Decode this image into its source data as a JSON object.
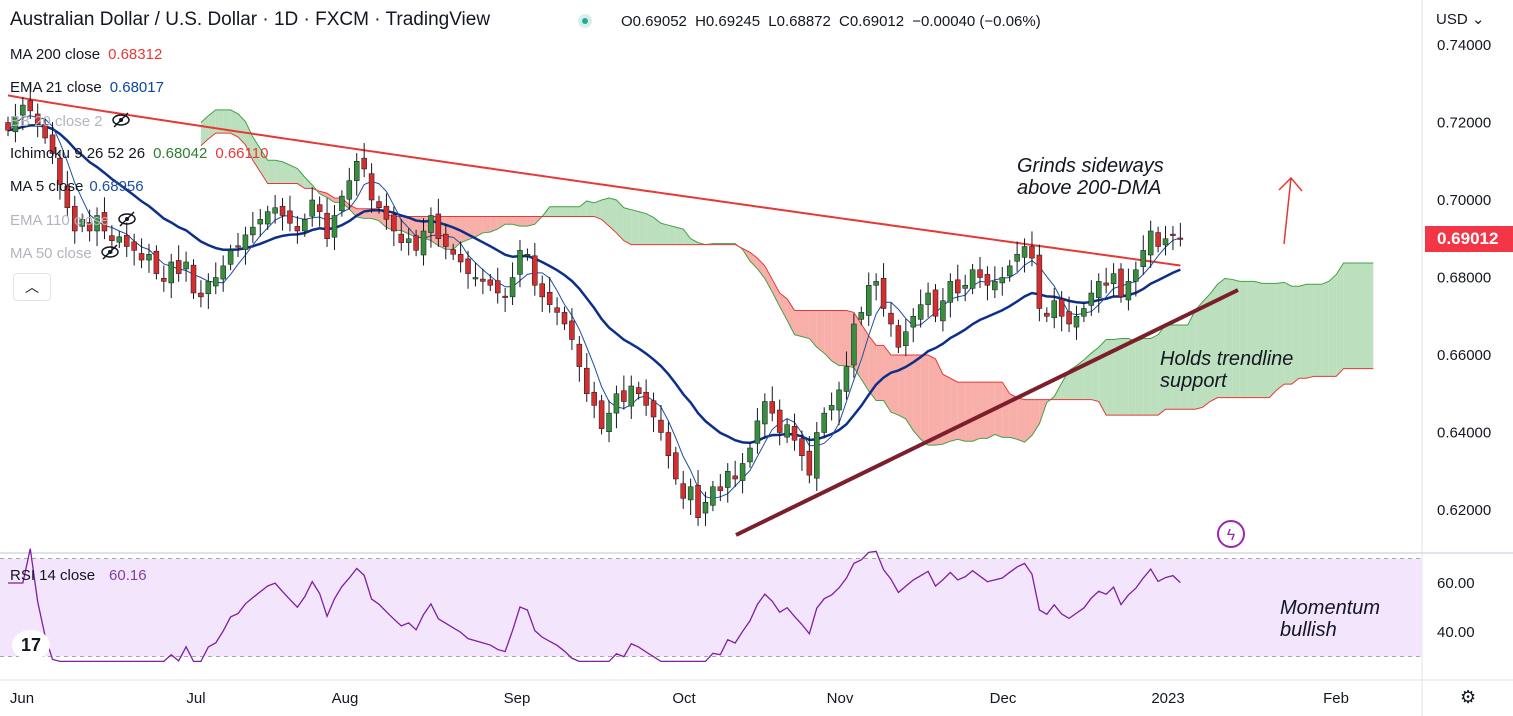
{
  "header": {
    "title": "Australian Dollar / U.S. Dollar · 1D · FXCM · TradingView",
    "open": "O0.69052",
    "high": "H0.69245",
    "low": "L0.68872",
    "close": "C0.69012",
    "change": "−0.00040 (−0.06%)"
  },
  "currency": "USD",
  "indicators": [
    {
      "label": "MA 200 close",
      "value": "0.68312",
      "color": "#e53935"
    },
    {
      "label": "EMA 21 close",
      "value": "0.68017",
      "color": "#0d47a1"
    },
    {
      "label": "BB 20 close 2",
      "value": "",
      "color": "#b2b5be",
      "hidden": true
    },
    {
      "label": "Ichimoku 9 26 52 26",
      "value": "0.68042",
      "value2": "0.66110",
      "color": "#2e7d32",
      "color2": "#e53935"
    },
    {
      "label": "MA 5 close",
      "value": "0.68956",
      "color": "#1e4fa3"
    },
    {
      "label": "EMA 110 close",
      "value": "",
      "color": "#b2b5be",
      "hidden": true
    },
    {
      "label": "MA 50 close",
      "value": "",
      "color": "#b2b5be",
      "hidden": true
    }
  ],
  "last_price_label": "0.69012",
  "rsi": {
    "label": "RSI 14 close",
    "value": "60.16"
  },
  "annotations": {
    "sideways_line1": "Grinds sideways",
    "sideways_line2": "above 200-DMA",
    "trend_line1": "Holds trendline",
    "trend_line2": "support",
    "momentum_line1": "Momentum",
    "momentum_line2": "bullish"
  },
  "chart_data": {
    "type": "candlestick",
    "price_axis": {
      "ticks": [
        "0.74000",
        "0.72000",
        "0.70000",
        "0.68000",
        "0.66000",
        "0.64000",
        "0.62000"
      ],
      "ylim": [
        0.61,
        0.742
      ]
    },
    "rsi_axis": {
      "ticks": [
        "60.00",
        "40.00"
      ],
      "ylim": [
        26,
        78
      ]
    },
    "time_axis": [
      "Jun",
      "Jul",
      "Aug",
      "Sep",
      "Oct",
      "Nov",
      "Dec",
      "2023",
      "Feb"
    ],
    "closes": [
      0.718,
      0.7215,
      0.7245,
      0.723,
      0.7195,
      0.716,
      0.712,
      0.704,
      0.698,
      0.692,
      0.695,
      0.692,
      0.696,
      0.692,
      0.6895,
      0.6905,
      0.688,
      0.687,
      0.6845,
      0.686,
      0.681,
      0.679,
      0.684,
      0.681,
      0.684,
      0.676,
      0.675,
      0.679,
      0.68,
      0.683,
      0.687,
      0.688,
      0.691,
      0.693,
      0.695,
      0.697,
      0.698,
      0.696,
      0.694,
      0.692,
      0.695,
      0.7,
      0.697,
      0.69,
      0.696,
      0.701,
      0.705,
      0.71,
      0.708,
      0.7,
      0.698,
      0.695,
      0.692,
      0.689,
      0.69,
      0.687,
      0.692,
      0.696,
      0.69,
      0.688,
      0.686,
      0.684,
      0.681,
      0.68,
      0.679,
      0.678,
      0.676,
      0.675,
      0.68,
      0.687,
      0.686,
      0.678,
      0.675,
      0.673,
      0.671,
      0.668,
      0.664,
      0.657,
      0.65,
      0.647,
      0.641,
      0.645,
      0.65,
      0.648,
      0.652,
      0.65,
      0.647,
      0.644,
      0.64,
      0.634,
      0.628,
      0.623,
      0.626,
      0.618,
      0.622,
      0.626,
      0.625,
      0.63,
      0.628,
      0.632,
      0.636,
      0.643,
      0.648,
      0.645,
      0.64,
      0.642,
      0.638,
      0.634,
      0.629,
      0.64,
      0.645,
      0.647,
      0.651,
      0.657,
      0.668,
      0.671,
      0.678,
      0.679,
      0.672,
      0.668,
      0.662,
      0.666,
      0.67,
      0.673,
      0.676,
      0.67,
      0.674,
      0.679,
      0.676,
      0.678,
      0.682,
      0.68,
      0.678,
      0.679,
      0.68,
      0.683,
      0.686,
      0.688,
      0.685,
      0.672,
      0.67,
      0.674,
      0.67,
      0.668,
      0.67,
      0.672,
      0.676,
      0.679,
      0.678,
      0.681,
      0.675,
      0.679,
      0.682,
      0.687,
      0.692,
      0.688,
      0.69,
      0.691,
      0.6901
    ]
  }
}
